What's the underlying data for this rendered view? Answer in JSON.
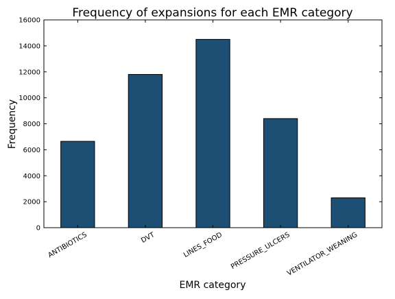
{
  "chart_data": {
    "type": "bar",
    "title": "Frequency of expansions for each EMR category",
    "xlabel": "EMR category",
    "ylabel": "Frequency",
    "categories": [
      "ANTIBIOTICS",
      "DVT",
      "LINES_FOOD",
      "PRESSURE_ULCERS",
      "VENTILATOR_WEANING"
    ],
    "values": [
      6650,
      11800,
      14500,
      8400,
      2300
    ],
    "ylim": [
      0,
      16000
    ],
    "yticks": [
      0,
      2000,
      4000,
      6000,
      8000,
      10000,
      12000,
      14000,
      16000
    ],
    "ytick_labels": [
      "0",
      "2000",
      "4000",
      "6000",
      "8000",
      "10000",
      "12000",
      "14000",
      "16000"
    ],
    "grid": false,
    "bar_color": "#1c4f73",
    "bar_edge_color": "#000000"
  }
}
